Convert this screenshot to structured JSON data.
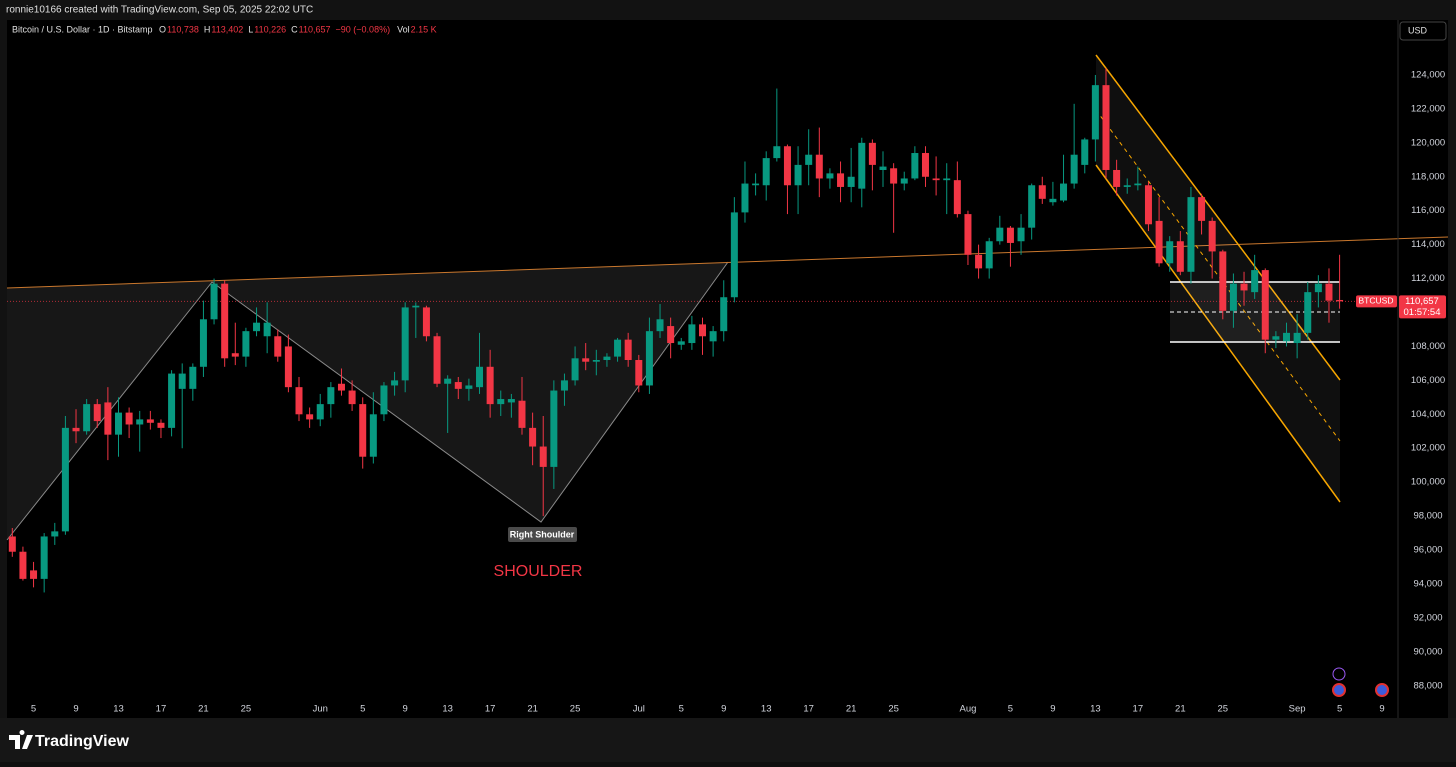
{
  "header": {
    "credit": "ronnie10166 created with TradingView.com, Sep 05, 2025 22:02 UTC",
    "brand": "TradingView"
  },
  "chart_data": {
    "type": "candlestick",
    "legend": {
      "symbol": "Bitcoin / U.S. Dollar · 1D · Bitstamp",
      "ohlc": [
        {
          "key": "O",
          "text": "110,738"
        },
        {
          "key": "H",
          "text": "113,402"
        },
        {
          "key": "L",
          "text": "110,226"
        },
        {
          "key": "C",
          "text": "110,657"
        }
      ],
      "change": "−90 (−0.08%)",
      "vol_key": "Vol",
      "vol": "2.15 K"
    },
    "currency": "USD",
    "symbol_tag": "BTCUSD",
    "countdown": "01:57:54",
    "last_price": {
      "value": 110657,
      "label": "110,657"
    },
    "annotations": {
      "label": "Right Shoulder",
      "note": "SHOULDER"
    },
    "up_color": "#089981",
    "down_color": "#f23645",
    "xlim": [
      "2025-05-02T12:00:00Z",
      "2025-09-10T12:00:00Z"
    ],
    "ylim": [
      86100,
      127240
    ],
    "yticks": [
      {
        "value": 88000,
        "label": "88,000"
      },
      {
        "value": 90000,
        "label": "90,000"
      },
      {
        "value": 92000,
        "label": "92,000"
      },
      {
        "value": 94000,
        "label": "94,000"
      },
      {
        "value": 96000,
        "label": "96,000"
      },
      {
        "value": 98000,
        "label": "98,000"
      },
      {
        "value": 100000,
        "label": "100,000"
      },
      {
        "value": 102000,
        "label": "102,000"
      },
      {
        "value": 104000,
        "label": "104,000"
      },
      {
        "value": 106000,
        "label": "106,000"
      },
      {
        "value": 108000,
        "label": "108,000"
      },
      {
        "value": 110000,
        "label": "110,000"
      },
      {
        "value": 112000,
        "label": "112,000"
      },
      {
        "value": 114000,
        "label": "114,000"
      },
      {
        "value": 116000,
        "label": "116,000"
      },
      {
        "value": 118000,
        "label": "118,000"
      },
      {
        "value": 120000,
        "label": "120,000"
      },
      {
        "value": 122000,
        "label": "122,000"
      },
      {
        "value": 124000,
        "label": "124,000"
      }
    ],
    "xticks": [
      {
        "value": "2025-05-05",
        "label": "5"
      },
      {
        "value": "2025-05-09",
        "label": "9"
      },
      {
        "value": "2025-05-13",
        "label": "13"
      },
      {
        "value": "2025-05-17",
        "label": "17"
      },
      {
        "value": "2025-05-21",
        "label": "21"
      },
      {
        "value": "2025-05-25",
        "label": "25"
      },
      {
        "value": "2025-06-01",
        "label": "Jun"
      },
      {
        "value": "2025-06-05",
        "label": "5"
      },
      {
        "value": "2025-06-09",
        "label": "9"
      },
      {
        "value": "2025-06-13",
        "label": "13"
      },
      {
        "value": "2025-06-17",
        "label": "17"
      },
      {
        "value": "2025-06-21",
        "label": "21"
      },
      {
        "value": "2025-06-25",
        "label": "25"
      },
      {
        "value": "2025-07-01",
        "label": "Jul"
      },
      {
        "value": "2025-07-05",
        "label": "5"
      },
      {
        "value": "2025-07-09",
        "label": "9"
      },
      {
        "value": "2025-07-13",
        "label": "13"
      },
      {
        "value": "2025-07-17",
        "label": "17"
      },
      {
        "value": "2025-07-21",
        "label": "21"
      },
      {
        "value": "2025-07-25",
        "label": "25"
      },
      {
        "value": "2025-08-01",
        "label": "Aug"
      },
      {
        "value": "2025-08-05",
        "label": "5"
      },
      {
        "value": "2025-08-09",
        "label": "9"
      },
      {
        "value": "2025-08-13",
        "label": "13"
      },
      {
        "value": "2025-08-17",
        "label": "17"
      },
      {
        "value": "2025-08-21",
        "label": "21"
      },
      {
        "value": "2025-08-25",
        "label": "25"
      },
      {
        "value": "2025-09-01",
        "label": "Sep"
      },
      {
        "value": "2025-09-05",
        "label": "5"
      },
      {
        "value": "2025-09-09",
        "label": "9"
      }
    ],
    "x": [
      "2025-05-03",
      "2025-05-04",
      "2025-05-05",
      "2025-05-06",
      "2025-05-07",
      "2025-05-08",
      "2025-05-09",
      "2025-05-10",
      "2025-05-11",
      "2025-05-12",
      "2025-05-13",
      "2025-05-14",
      "2025-05-15",
      "2025-05-16",
      "2025-05-17",
      "2025-05-18",
      "2025-05-19",
      "2025-05-20",
      "2025-05-21",
      "2025-05-22",
      "2025-05-23",
      "2025-05-24",
      "2025-05-25",
      "2025-05-26",
      "2025-05-27",
      "2025-05-28",
      "2025-05-29",
      "2025-05-30",
      "2025-05-31",
      "2025-06-01",
      "2025-06-02",
      "2025-06-03",
      "2025-06-04",
      "2025-06-05",
      "2025-06-06",
      "2025-06-07",
      "2025-06-08",
      "2025-06-09",
      "2025-06-10",
      "2025-06-11",
      "2025-06-12",
      "2025-06-13",
      "2025-06-14",
      "2025-06-15",
      "2025-06-16",
      "2025-06-17",
      "2025-06-18",
      "2025-06-19",
      "2025-06-20",
      "2025-06-21",
      "2025-06-22",
      "2025-06-23",
      "2025-06-24",
      "2025-06-25",
      "2025-06-26",
      "2025-06-27",
      "2025-06-28",
      "2025-06-29",
      "2025-06-30",
      "2025-07-01",
      "2025-07-02",
      "2025-07-03",
      "2025-07-04",
      "2025-07-05",
      "2025-07-06",
      "2025-07-07",
      "2025-07-08",
      "2025-07-09",
      "2025-07-10",
      "2025-07-11",
      "2025-07-12",
      "2025-07-13",
      "2025-07-14",
      "2025-07-15",
      "2025-07-16",
      "2025-07-17",
      "2025-07-18",
      "2025-07-19",
      "2025-07-20",
      "2025-07-21",
      "2025-07-22",
      "2025-07-23",
      "2025-07-24",
      "2025-07-25",
      "2025-07-26",
      "2025-07-27",
      "2025-07-28",
      "2025-07-29",
      "2025-07-30",
      "2025-07-31",
      "2025-08-01",
      "2025-08-02",
      "2025-08-03",
      "2025-08-04",
      "2025-08-05",
      "2025-08-06",
      "2025-08-07",
      "2025-08-08",
      "2025-08-09",
      "2025-08-10",
      "2025-08-11",
      "2025-08-12",
      "2025-08-13",
      "2025-08-14",
      "2025-08-15",
      "2025-08-16",
      "2025-08-17",
      "2025-08-18",
      "2025-08-19",
      "2025-08-20",
      "2025-08-21",
      "2025-08-22",
      "2025-08-23",
      "2025-08-24",
      "2025-08-25",
      "2025-08-26",
      "2025-08-27",
      "2025-08-28",
      "2025-08-29",
      "2025-08-30",
      "2025-08-31",
      "2025-09-01",
      "2025-09-02",
      "2025-09-03",
      "2025-09-04",
      "2025-09-05"
    ],
    "open": [
      96800,
      95900,
      94800,
      94300,
      96800,
      97100,
      103200,
      103000,
      104600,
      104700,
      102800,
      104100,
      103400,
      103700,
      103500,
      103200,
      105500,
      105500,
      106800,
      109600,
      111700,
      107600,
      107400,
      108900,
      108600,
      108600,
      108000,
      105600,
      104000,
      103700,
      104600,
      105800,
      105400,
      104600,
      101500,
      104000,
      105700,
      106000,
      110300,
      110300,
      108600,
      105800,
      105900,
      105500,
      105600,
      106800,
      104600,
      104700,
      104800,
      103200,
      102100,
      100900,
      105400,
      106000,
      107300,
      107100,
      107200,
      107400,
      108400,
      107200,
      105700,
      108900,
      109200,
      108100,
      108200,
      109300,
      108300,
      108900,
      110900,
      115900,
      117500,
      117500,
      119100,
      119800,
      117500,
      118700,
      119300,
      117900,
      118200,
      117400,
      117300,
      120000,
      118400,
      118500,
      117600,
      117900,
      119400,
      117900,
      117800,
      117800,
      115800,
      113400,
      112600,
      114200,
      115000,
      114200,
      115000,
      117500,
      116500,
      116600,
      117600,
      118700,
      120200,
      123400,
      118400,
      117400,
      117500,
      117500,
      115400,
      112900,
      114200,
      112400,
      116800,
      115400,
      113600,
      110100,
      111700,
      111200,
      112500,
      108400,
      108300,
      108200,
      108800,
      111200,
      111700,
      110738
    ],
    "high": [
      97300,
      96200,
      95300,
      97000,
      97600,
      103900,
      104300,
      104900,
      104900,
      105600,
      105000,
      104400,
      104200,
      104200,
      103700,
      106600,
      107000,
      107000,
      110700,
      112000,
      111900,
      109400,
      109100,
      110300,
      110600,
      109000,
      108700,
      106200,
      104400,
      105200,
      105900,
      106700,
      106000,
      105000,
      105300,
      105900,
      106500,
      110600,
      110600,
      110400,
      108800,
      106300,
      106200,
      106100,
      108800,
      107800,
      105400,
      105200,
      106200,
      104100,
      103900,
      106000,
      106400,
      108000,
      108200,
      107800,
      107600,
      108500,
      108800,
      107500,
      109700,
      110500,
      109700,
      108500,
      109800,
      109700,
      109200,
      111900,
      116800,
      118900,
      118200,
      119500,
      123200,
      119900,
      119800,
      120800,
      120900,
      118500,
      118900,
      119700,
      120300,
      120200,
      119500,
      118800,
      118300,
      119800,
      119800,
      119200,
      118800,
      118900,
      116000,
      114000,
      114400,
      115700,
      115100,
      115800,
      117600,
      118000,
      117700,
      119300,
      122300,
      120300,
      124000,
      124400,
      119000,
      117900,
      118600,
      117700,
      116800,
      114500,
      114800,
      117400,
      117000,
      115600,
      113700,
      112300,
      112400,
      113400,
      112600,
      108900,
      109400,
      109900,
      111800,
      112200,
      112600,
      113402
    ],
    "low": [
      95600,
      94200,
      93800,
      93500,
      96300,
      96900,
      102300,
      102800,
      103200,
      101300,
      101500,
      102600,
      101800,
      103100,
      102600,
      102700,
      102000,
      104800,
      106200,
      109300,
      106800,
      106900,
      106800,
      108600,
      107600,
      107100,
      105300,
      103600,
      103200,
      103300,
      103800,
      105100,
      104200,
      100800,
      101100,
      103600,
      105100,
      105300,
      108500,
      108300,
      105600,
      102900,
      104900,
      104800,
      105200,
      103800,
      103900,
      103800,
      102800,
      101000,
      98000,
      99600,
      104500,
      105700,
      106600,
      106300,
      106800,
      107100,
      106800,
      105300,
      105200,
      108500,
      107300,
      107800,
      107800,
      107500,
      107400,
      108300,
      110600,
      115300,
      116900,
      116600,
      118900,
      115800,
      115800,
      117500,
      116800,
      117300,
      116500,
      116500,
      116200,
      117200,
      117400,
      114700,
      117200,
      117800,
      117400,
      116900,
      115800,
      115600,
      112800,
      112000,
      112000,
      114000,
      112700,
      113400,
      114300,
      116400,
      116300,
      116500,
      117300,
      118200,
      118900,
      117900,
      116900,
      117000,
      117200,
      114800,
      112700,
      112400,
      112200,
      111700,
      114600,
      112000,
      109600,
      109100,
      110400,
      110800,
      107600,
      107900,
      108000,
      107300,
      108400,
      110300,
      109400,
      110226
    ],
    "close": [
      95900,
      94300,
      94300,
      96800,
      97100,
      103200,
      103000,
      104600,
      103600,
      102800,
      104100,
      103400,
      103700,
      103500,
      103200,
      106400,
      106400,
      106800,
      109600,
      111700,
      107300,
      107400,
      108900,
      109400,
      109400,
      107400,
      105600,
      104000,
      103700,
      104600,
      105600,
      105400,
      104600,
      101500,
      104000,
      105700,
      106000,
      110300,
      110400,
      108600,
      105800,
      106100,
      105500,
      105700,
      106800,
      104600,
      104900,
      104900,
      103200,
      102100,
      100900,
      105400,
      106000,
      107300,
      107100,
      107200,
      107400,
      108400,
      107200,
      105700,
      108900,
      109600,
      108200,
      108300,
      109300,
      108600,
      108900,
      110900,
      115900,
      117600,
      117600,
      119100,
      119800,
      117500,
      118700,
      119300,
      117900,
      118200,
      117400,
      118000,
      120000,
      118700,
      118600,
      117600,
      117900,
      119400,
      118000,
      117800,
      117900,
      115800,
      113400,
      112600,
      114200,
      115000,
      114100,
      115000,
      117500,
      116700,
      116700,
      117600,
      119300,
      120200,
      123400,
      118400,
      117400,
      117500,
      117600,
      115200,
      112900,
      114200,
      112400,
      116800,
      115400,
      113600,
      110100,
      111700,
      111300,
      112500,
      108400,
      108600,
      108800,
      108800,
      111200,
      111700,
      110700,
      110657
    ]
  }
}
